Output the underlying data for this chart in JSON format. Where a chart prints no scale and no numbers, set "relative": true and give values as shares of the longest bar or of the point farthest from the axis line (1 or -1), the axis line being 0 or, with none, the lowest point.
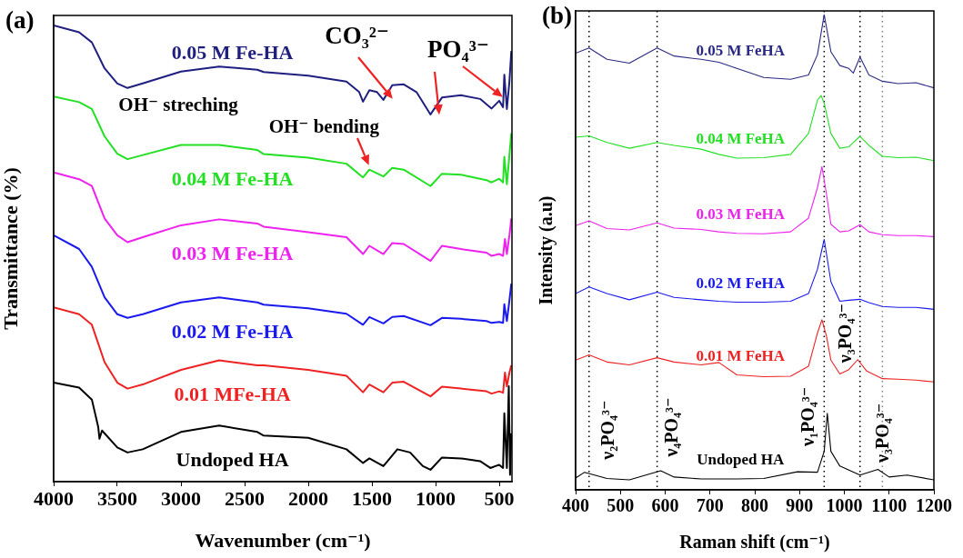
{
  "chart_data": [
    {
      "type": "line",
      "title": "(a)",
      "xlabel": "Wavenumber (cm⁻¹)",
      "ylabel": "Transmittance (%)",
      "relative": true,
      "xlim": [
        4000,
        400
      ],
      "xticks": [
        4000,
        3500,
        3000,
        2500,
        2000,
        1500,
        1000,
        500
      ],
      "series": [
        {
          "name": "0.05 M Fe-HA",
          "color": "#1f1f80",
          "x": [
            4000,
            3800,
            3700,
            3600,
            3500,
            3420,
            3300,
            3000,
            2700,
            2400,
            2350,
            2000,
            1700,
            1600,
            1570,
            1520,
            1460,
            1410,
            1340,
            1250,
            1150,
            1040,
            950,
            800,
            650,
            560,
            500,
            470,
            460,
            440,
            420,
            405
          ],
          "values": [
            1.0,
            0.985,
            0.963,
            0.906,
            0.873,
            0.863,
            0.873,
            0.899,
            0.91,
            0.903,
            0.898,
            0.89,
            0.877,
            0.854,
            0.833,
            0.858,
            0.854,
            0.837,
            0.869,
            0.871,
            0.854,
            0.805,
            0.842,
            0.847,
            0.839,
            0.818,
            0.835,
            0.821,
            0.892,
            0.817,
            0.877,
            0.944
          ]
        },
        {
          "name": "0.04 M Fe-HA",
          "color": "#22e022",
          "x": [
            4000,
            3800,
            3700,
            3600,
            3500,
            3420,
            3300,
            3000,
            2700,
            2400,
            2350,
            2000,
            1700,
            1570,
            1520,
            1410,
            1340,
            1250,
            1040,
            950,
            800,
            600,
            560,
            500,
            470,
            460,
            440,
            420,
            405
          ],
          "values": [
            0.844,
            0.832,
            0.817,
            0.757,
            0.719,
            0.707,
            0.716,
            0.738,
            0.738,
            0.727,
            0.718,
            0.71,
            0.697,
            0.667,
            0.684,
            0.669,
            0.688,
            0.684,
            0.648,
            0.675,
            0.673,
            0.661,
            0.656,
            0.664,
            0.656,
            0.712,
            0.652,
            0.716,
            0.764
          ]
        },
        {
          "name": "0.03 M Fe-HA",
          "color": "#ee22ee",
          "x": [
            4000,
            3800,
            3700,
            3600,
            3500,
            3420,
            3300,
            3000,
            2700,
            2400,
            2350,
            2000,
            1700,
            1570,
            1520,
            1410,
            1340,
            1250,
            1040,
            950,
            800,
            600,
            560,
            500,
            470,
            455,
            440,
            420,
            405
          ],
          "values": [
            0.678,
            0.663,
            0.648,
            0.577,
            0.54,
            0.525,
            0.536,
            0.562,
            0.575,
            0.566,
            0.559,
            0.547,
            0.536,
            0.499,
            0.517,
            0.499,
            0.523,
            0.521,
            0.484,
            0.517,
            0.51,
            0.502,
            0.495,
            0.499,
            0.495,
            0.532,
            0.499,
            0.54,
            0.577
          ]
        },
        {
          "name": "0.02 M Fe-HA",
          "color": "#1a1aee",
          "x": [
            4000,
            3800,
            3700,
            3600,
            3500,
            3420,
            3300,
            3000,
            2700,
            2400,
            2350,
            2000,
            1700,
            1570,
            1520,
            1410,
            1340,
            1250,
            1040,
            950,
            800,
            600,
            560,
            500,
            470,
            460,
            440,
            420,
            405
          ],
          "values": [
            0.54,
            0.51,
            0.471,
            0.404,
            0.367,
            0.359,
            0.367,
            0.393,
            0.404,
            0.393,
            0.388,
            0.38,
            0.368,
            0.344,
            0.361,
            0.347,
            0.361,
            0.363,
            0.343,
            0.359,
            0.357,
            0.352,
            0.348,
            0.35,
            0.348,
            0.389,
            0.352,
            0.397,
            0.434
          ]
        },
        {
          "name": "0.01 MFe-HA",
          "color": "#ee2222",
          "x": [
            4000,
            3800,
            3700,
            3600,
            3500,
            3420,
            3300,
            3000,
            2700,
            2400,
            2350,
            2000,
            1700,
            1570,
            1520,
            1410,
            1340,
            1250,
            1040,
            950,
            800,
            600,
            560,
            500,
            470,
            455,
            440,
            420,
            405
          ],
          "values": [
            0.382,
            0.367,
            0.344,
            0.262,
            0.217,
            0.204,
            0.213,
            0.245,
            0.266,
            0.255,
            0.255,
            0.245,
            0.232,
            0.196,
            0.213,
            0.196,
            0.217,
            0.219,
            0.187,
            0.208,
            0.204,
            0.198,
            0.193,
            0.198,
            0.195,
            0.239,
            0.209,
            0.239,
            0.255
          ]
        },
        {
          "name": "Undoped HA",
          "color": "#000000",
          "x": [
            4000,
            3800,
            3700,
            3650,
            3640,
            3620,
            3500,
            3420,
            3300,
            3000,
            2700,
            2400,
            2350,
            2000,
            1700,
            1570,
            1520,
            1410,
            1300,
            1200,
            1100,
            1040,
            950,
            800,
            650,
            570,
            500,
            470,
            460,
            440,
            425,
            415,
            405
          ],
          "values": [
            0.217,
            0.206,
            0.18,
            0.12,
            0.094,
            0.112,
            0.075,
            0.064,
            0.071,
            0.109,
            0.123,
            0.109,
            0.101,
            0.096,
            0.071,
            0.041,
            0.051,
            0.034,
            0.071,
            0.064,
            0.034,
            0.026,
            0.053,
            0.051,
            0.045,
            0.03,
            0.037,
            0.03,
            0.15,
            0.03,
            0.209,
            0.015,
            0.106
          ]
        }
      ],
      "annotations": [
        "OH⁻ streching",
        "OH⁻ bending",
        "CO₃²⁻",
        "PO₄³⁻"
      ]
    },
    {
      "type": "line",
      "title": "(b)",
      "xlabel": "Raman shift (cm⁻¹)",
      "ylabel": "Intensity (a.u)",
      "relative": true,
      "xlim": [
        400,
        1200
      ],
      "xticks": [
        400,
        500,
        600,
        700,
        800,
        900,
        1000,
        1100,
        1200
      ],
      "series": [
        {
          "name": "0.05 M FeHA",
          "color": "#2a2a85",
          "x": [
            400,
            430,
            470,
            520,
            582,
            620,
            680,
            720,
            760,
            820,
            880,
            920,
            940,
            955,
            970,
            990,
            1010,
            1020,
            1035,
            1055,
            1085,
            1120,
            1160,
            1200
          ],
          "values": [
            0.919,
            0.93,
            0.906,
            0.898,
            0.93,
            0.913,
            0.906,
            0.9,
            0.887,
            0.868,
            0.864,
            0.873,
            0.916,
            1.0,
            0.922,
            0.893,
            0.887,
            0.877,
            0.911,
            0.873,
            0.86,
            0.855,
            0.857,
            0.846
          ]
        },
        {
          "name": "0.04 M FeHA",
          "color": "#22e022",
          "x": [
            400,
            430,
            470,
            520,
            582,
            620,
            680,
            720,
            760,
            820,
            880,
            920,
            940,
            948,
            955,
            970,
            990,
            1010,
            1020,
            1035,
            1055,
            1085,
            1120,
            1160,
            1200
          ],
          "values": [
            0.742,
            0.745,
            0.731,
            0.719,
            0.731,
            0.725,
            0.717,
            0.706,
            0.698,
            0.699,
            0.706,
            0.75,
            0.82,
            0.83,
            0.814,
            0.75,
            0.719,
            0.722,
            0.731,
            0.744,
            0.725,
            0.702,
            0.699,
            0.7,
            0.693
          ]
        },
        {
          "name": "0.03 M FeHA",
          "color": "#ee22ee",
          "x": [
            400,
            430,
            470,
            520,
            582,
            620,
            680,
            720,
            760,
            820,
            880,
            920,
            940,
            950,
            960,
            970,
            990,
            1010,
            1035,
            1055,
            1085,
            1120,
            1160,
            1200
          ],
          "values": [
            0.556,
            0.566,
            0.55,
            0.547,
            0.562,
            0.551,
            0.548,
            0.543,
            0.54,
            0.539,
            0.543,
            0.572,
            0.636,
            0.68,
            0.623,
            0.559,
            0.543,
            0.545,
            0.558,
            0.543,
            0.537,
            0.535,
            0.535,
            0.533
          ]
        },
        {
          "name": "0.02 M FeHA",
          "color": "#1a1aee",
          "x": [
            400,
            430,
            470,
            520,
            582,
            620,
            680,
            720,
            760,
            820,
            880,
            920,
            940,
            955,
            970,
            990,
            1010,
            1035,
            1055,
            1085,
            1120,
            1160,
            1200
          ],
          "values": [
            0.413,
            0.427,
            0.413,
            0.4,
            0.416,
            0.405,
            0.4,
            0.397,
            0.395,
            0.395,
            0.397,
            0.413,
            0.464,
            0.527,
            0.438,
            0.397,
            0.399,
            0.401,
            0.394,
            0.386,
            0.384,
            0.384,
            0.38
          ]
        },
        {
          "name": "0.01 M FeHA",
          "color": "#ee2222",
          "x": [
            400,
            430,
            470,
            520,
            582,
            620,
            680,
            720,
            760,
            820,
            880,
            920,
            940,
            950,
            960,
            970,
            990,
            1010,
            1030,
            1050,
            1085,
            1120,
            1160,
            1200
          ],
          "values": [
            0.273,
            0.284,
            0.269,
            0.263,
            0.278,
            0.269,
            0.263,
            0.268,
            0.242,
            0.238,
            0.239,
            0.26,
            0.33,
            0.358,
            0.324,
            0.273,
            0.244,
            0.253,
            0.274,
            0.25,
            0.234,
            0.233,
            0.231,
            0.227
          ]
        },
        {
          "name": "Undoped HA",
          "color": "#000000",
          "x": [
            400,
            420,
            470,
            520,
            590,
            620,
            680,
            760,
            820,
            895,
            940,
            955,
            962,
            970,
            990,
            1035,
            1075,
            1100,
            1140,
            1200
          ],
          "values": [
            0.025,
            0.037,
            0.024,
            0.021,
            0.04,
            0.027,
            0.023,
            0.023,
            0.024,
            0.038,
            0.037,
            0.081,
            0.161,
            0.081,
            0.05,
            0.031,
            0.043,
            0.027,
            0.031,
            0.021
          ]
        }
      ],
      "ref_lines": [
        {
          "axis": "x",
          "value": 430,
          "color": "#000000",
          "line_style": "dotted"
        },
        {
          "axis": "x",
          "value": 582,
          "color": "#000000",
          "line_style": "dotted"
        },
        {
          "axis": "x",
          "value": 955,
          "color": "#000000",
          "line_style": "dotted"
        },
        {
          "axis": "x",
          "value": 1035,
          "color": "#000000",
          "line_style": "dotted"
        },
        {
          "axis": "x",
          "value": 1085,
          "color": "#808080",
          "line_style": "dotted"
        }
      ],
      "annotations": [
        "ν₂PO₄³⁻",
        "ν₄PO₄³⁻",
        "ν₁PO₄³⁻",
        "ν₃PO₄³⁻",
        "ν₃PO₄³⁻"
      ]
    }
  ]
}
